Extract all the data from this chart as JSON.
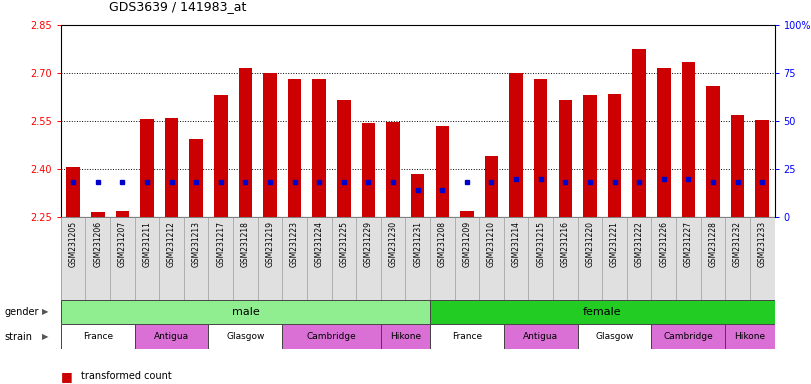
{
  "title": "GDS3639 / 141983_at",
  "samples": [
    "GSM231205",
    "GSM231206",
    "GSM231207",
    "GSM231211",
    "GSM231212",
    "GSM231213",
    "GSM231217",
    "GSM231218",
    "GSM231219",
    "GSM231223",
    "GSM231224",
    "GSM231225",
    "GSM231229",
    "GSM231230",
    "GSM231231",
    "GSM231208",
    "GSM231209",
    "GSM231210",
    "GSM231214",
    "GSM231215",
    "GSM231216",
    "GSM231220",
    "GSM231221",
    "GSM231222",
    "GSM231226",
    "GSM231227",
    "GSM231228",
    "GSM231232",
    "GSM231233"
  ],
  "transformed_count": [
    2.405,
    2.265,
    2.268,
    2.555,
    2.56,
    2.495,
    2.63,
    2.715,
    2.7,
    2.68,
    2.68,
    2.615,
    2.545,
    2.548,
    2.385,
    2.535,
    2.27,
    2.44,
    2.7,
    2.68,
    2.615,
    2.63,
    2.635,
    2.775,
    2.715,
    2.735,
    2.66,
    2.57,
    2.552
  ],
  "percentile_rank": [
    18,
    18,
    18,
    18,
    18,
    18,
    18,
    18,
    18,
    18,
    18,
    18,
    18,
    18,
    14,
    14,
    18,
    18,
    20,
    20,
    18,
    18,
    18,
    18,
    20,
    20,
    18,
    18,
    18
  ],
  "ymin": 2.25,
  "ymax": 2.85,
  "yticks": [
    2.25,
    2.4,
    2.55,
    2.7,
    2.85
  ],
  "right_yticks": [
    0,
    25,
    50,
    75,
    100
  ],
  "bar_color": "#CC0000",
  "dot_color": "#0000CC",
  "gender_labels": [
    "male",
    "female"
  ],
  "gender_ranges": [
    [
      0.5,
      15.5
    ],
    [
      15.5,
      29.5
    ]
  ],
  "gender_colors": [
    "#90EE90",
    "#00CC00"
  ],
  "strain_names": [
    "France",
    "Antigua",
    "Glasgow",
    "Cambridge",
    "Hikone"
  ],
  "strain_male_ranges": [
    [
      0.5,
      3.5
    ],
    [
      3.5,
      6.5
    ],
    [
      6.5,
      9.5
    ],
    [
      9.5,
      13.5
    ],
    [
      13.5,
      15.5
    ]
  ],
  "strain_female_ranges": [
    [
      15.5,
      18.5
    ],
    [
      18.5,
      21.5
    ],
    [
      21.5,
      24.5
    ],
    [
      24.5,
      27.5
    ],
    [
      27.5,
      29.5
    ]
  ],
  "strain_colors": [
    "#FFFFFF",
    "#DA70D6",
    "#FFFFFF",
    "#DA70D6",
    "#DA70D6"
  ],
  "xtick_bg": "#DDDDDD",
  "border_color": "#888888"
}
